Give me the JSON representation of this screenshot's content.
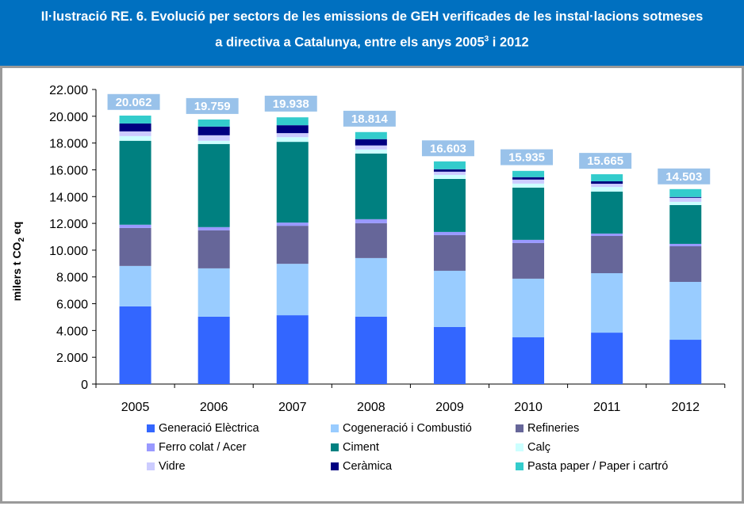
{
  "title": {
    "line1": "Il·lustració RE. 6. Evolució per sectors de les emissions de GEH verificades de les instal·lacions sotmeses",
    "line2_prefix": "a directiva a Catalunya, entre els anys 2005",
    "line2_sup": "3",
    "line2_suffix": " i 2012"
  },
  "colors": {
    "title_bg": "#0070C0",
    "total_label_bg": "#99C2EA"
  },
  "chart_data": {
    "type": "bar",
    "stacked": true,
    "title": "Il·lustració RE. 6. Evolució per sectors de les emissions de GEH verificades de les instal·lacions sotmeses a directiva a Catalunya, entre els anys 2005 i 2012",
    "xlabel": "",
    "ylabel": "milers t CO2 eq",
    "ylabel_parts": {
      "pre": "milers t CO",
      "sub": "2",
      "post": " eq"
    },
    "ylim": [
      0,
      22000
    ],
    "yticks": [
      0,
      2000,
      4000,
      6000,
      8000,
      10000,
      12000,
      14000,
      16000,
      18000,
      20000,
      22000
    ],
    "ytick_labels": [
      "0",
      "2.000",
      "4.000",
      "6.000",
      "8.000",
      "10.000",
      "12.000",
      "14.000",
      "16.000",
      "18.000",
      "20.000",
      "22.000"
    ],
    "grid": false,
    "legend_position": "bottom",
    "categories": [
      "2005",
      "2006",
      "2007",
      "2008",
      "2009",
      "2010",
      "2011",
      "2012"
    ],
    "totals": [
      20062,
      19759,
      19938,
      18814,
      16603,
      15935,
      15665,
      14503
    ],
    "total_labels": [
      "20.062",
      "19.759",
      "19.938",
      "18.814",
      "16.603",
      "15.935",
      "15.665",
      "14.503"
    ],
    "series": [
      {
        "name": "Generació Elèctrica",
        "color": "#3366FF",
        "values": [
          5800,
          5030,
          5140,
          5030,
          4260,
          3490,
          3840,
          3310
        ]
      },
      {
        "name": "Cogeneració i Combustió",
        "color": "#99CCFF",
        "values": [
          3020,
          3610,
          3840,
          4380,
          4200,
          4380,
          4440,
          4320
        ]
      },
      {
        "name": "Refineries",
        "color": "#666699",
        "values": [
          2840,
          2840,
          2840,
          2600,
          2660,
          2660,
          2780,
          2660
        ]
      },
      {
        "name": "Ferro colat / Acer",
        "color": "#9999FF",
        "values": [
          240,
          240,
          240,
          300,
          240,
          240,
          180,
          180
        ]
      },
      {
        "name": "Ciment",
        "color": "#008080",
        "values": [
          6270,
          6210,
          6030,
          4910,
          3960,
          3900,
          3130,
          2900
        ]
      },
      {
        "name": "Calç",
        "color": "#CCFFFF",
        "values": [
          350,
          240,
          350,
          300,
          300,
          300,
          350,
          240
        ]
      },
      {
        "name": "Vidre",
        "color": "#CCCCFF",
        "values": [
          350,
          410,
          300,
          300,
          240,
          300,
          240,
          300
        ]
      },
      {
        "name": "Ceràmica",
        "color": "#000080",
        "values": [
          590,
          650,
          590,
          470,
          180,
          180,
          180,
          60
        ]
      },
      {
        "name": "Pasta paper / Paper i cartró",
        "color": "#33CCCC",
        "values": [
          590,
          530,
          590,
          530,
          590,
          470,
          530,
          590
        ]
      }
    ]
  },
  "legend": {
    "items": [
      {
        "label": "Generació Elèctrica",
        "color": "#3366FF"
      },
      {
        "label": "Cogeneració i Combustió",
        "color": "#99CCFF"
      },
      {
        "label": "Refineries",
        "color": "#666699"
      },
      {
        "label": "Ferro colat / Acer",
        "color": "#9999FF"
      },
      {
        "label": "Ciment",
        "color": "#008080"
      },
      {
        "label": "Calç",
        "color": "#CCFFFF"
      },
      {
        "label": "Vidre",
        "color": "#CCCCFF"
      },
      {
        "label": "Ceràmica",
        "color": "#000080"
      },
      {
        "label": "Pasta paper / Paper i cartró",
        "color": "#33CCCC"
      }
    ]
  }
}
